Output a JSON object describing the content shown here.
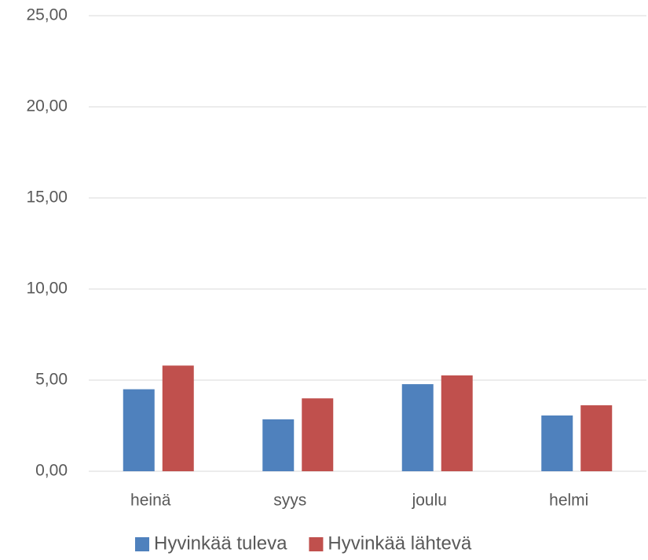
{
  "chart_data": {
    "type": "bar",
    "categories": [
      "heinä",
      "syys",
      "joulu",
      "helmi"
    ],
    "series": [
      {
        "name": "Hyvinkää tuleva",
        "color": "#4f81bd",
        "values": [
          4.5,
          2.85,
          4.78,
          3.06
        ]
      },
      {
        "name": "Hyvinkää lähtevä",
        "color": "#c0504d",
        "values": [
          5.8,
          4.0,
          5.26,
          3.62
        ]
      }
    ],
    "ylim": [
      0,
      25
    ],
    "yticks": [
      {
        "value": 0,
        "label": "0,00"
      },
      {
        "value": 5,
        "label": "5,00"
      },
      {
        "value": 10,
        "label": "10,00"
      },
      {
        "value": 15,
        "label": "15,00"
      },
      {
        "value": 20,
        "label": "20,00"
      },
      {
        "value": 25,
        "label": "25,00"
      }
    ],
    "grid": true,
    "legend": "bottom"
  }
}
